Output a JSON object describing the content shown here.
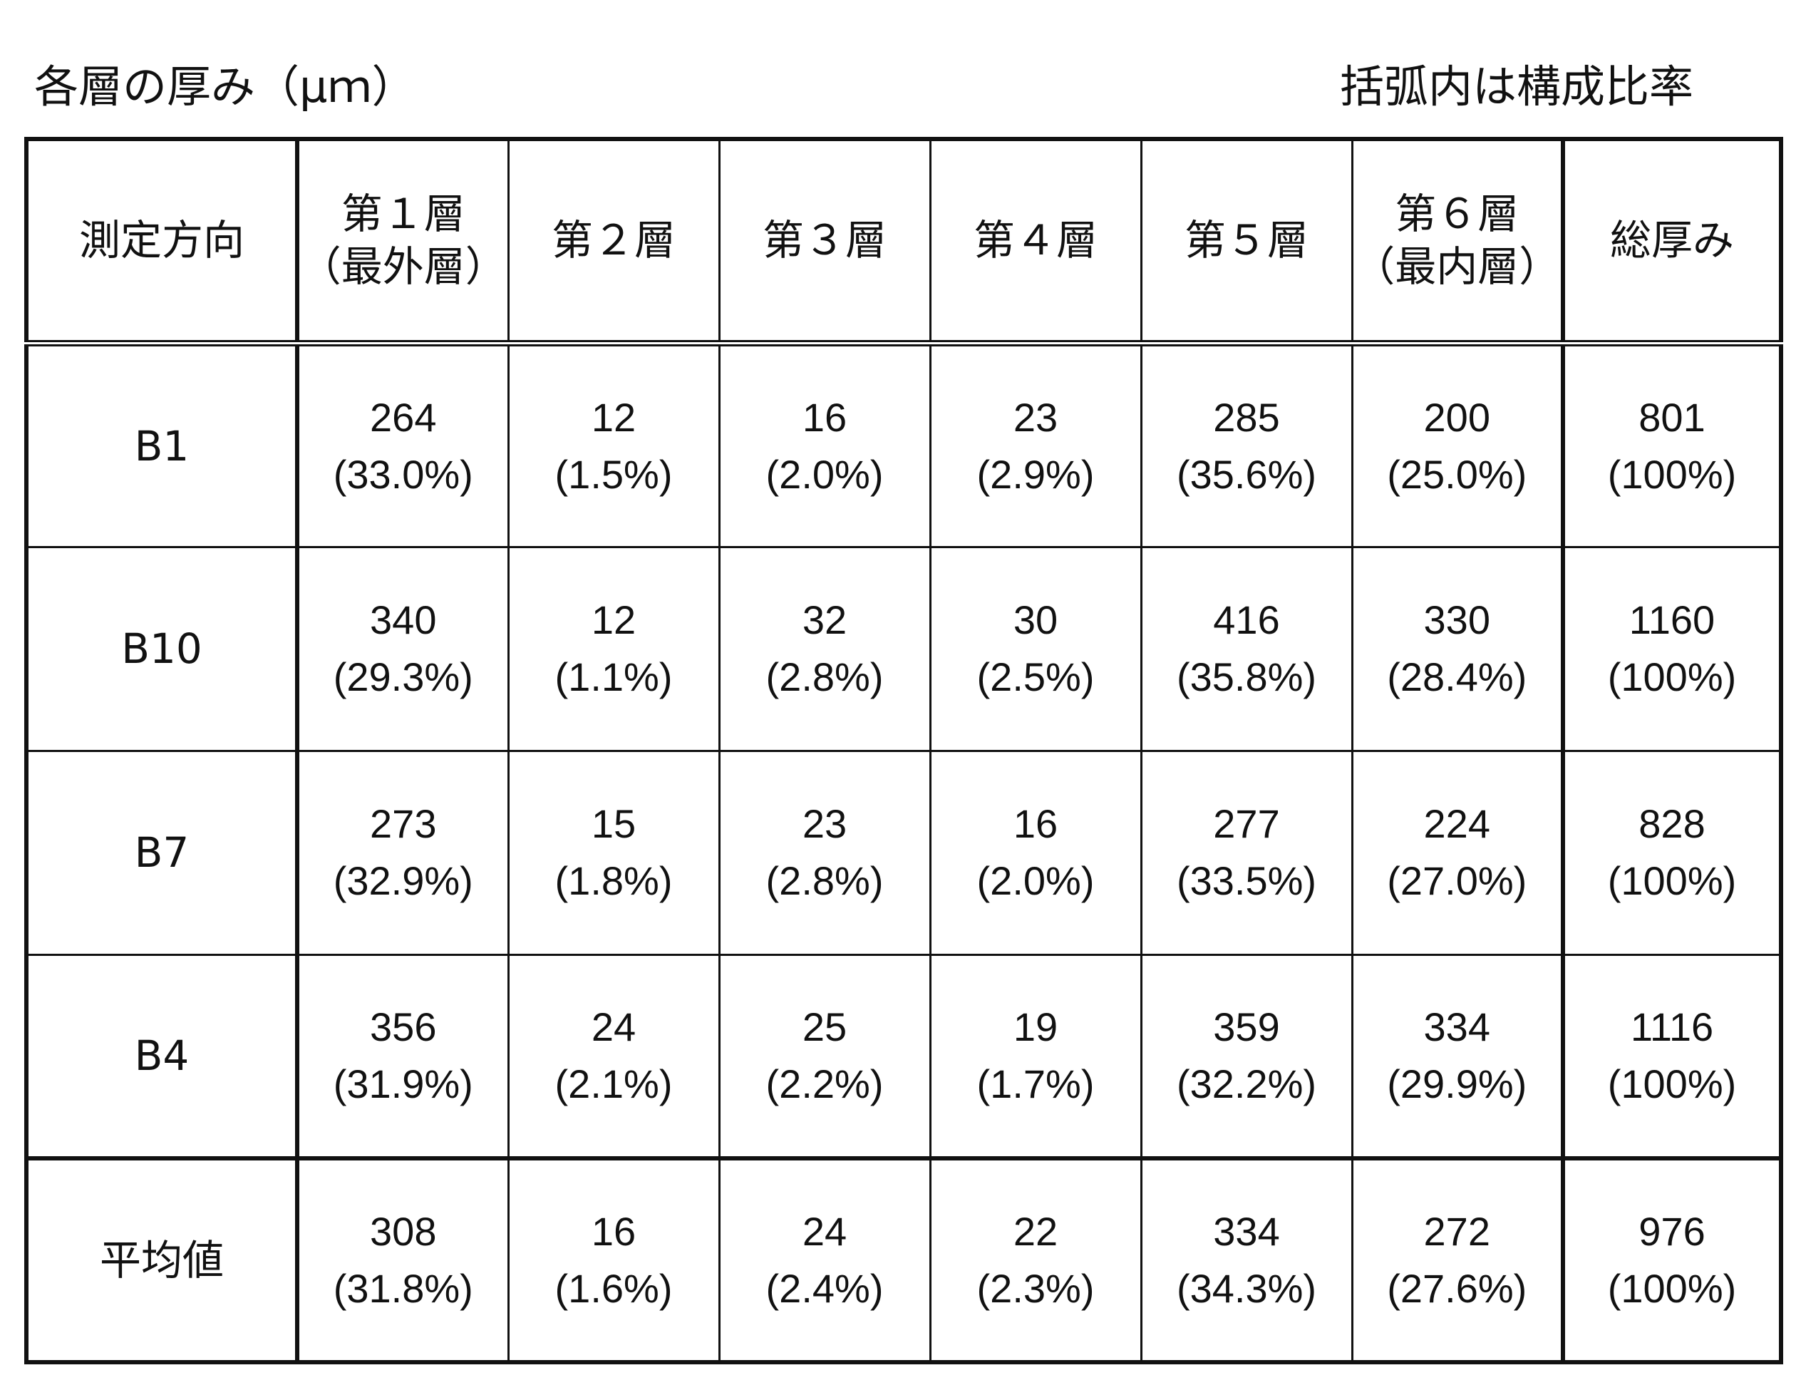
{
  "caption_left": "各層の厚み（μｍ）",
  "caption_right": "括弧内は構成比率",
  "header": {
    "direction": "測定方向",
    "layers": [
      {
        "line1": "第１層",
        "line2": "（最外層）"
      },
      {
        "line1": "第２層",
        "line2": ""
      },
      {
        "line1": "第３層",
        "line2": ""
      },
      {
        "line1": "第４層",
        "line2": ""
      },
      {
        "line1": "第５層",
        "line2": ""
      },
      {
        "line1": "第６層",
        "line2": "（最内層）"
      }
    ],
    "total": "総厚み"
  },
  "rows": [
    {
      "label": "B1",
      "cells": [
        {
          "value": "264",
          "ratio": "(33.0%)"
        },
        {
          "value": "12",
          "ratio": "(1.5%)"
        },
        {
          "value": "16",
          "ratio": "(2.0%)"
        },
        {
          "value": "23",
          "ratio": "(2.9%)"
        },
        {
          "value": "285",
          "ratio": "(35.6%)"
        },
        {
          "value": "200",
          "ratio": "(25.0%)"
        },
        {
          "value": "801",
          "ratio": "(100%)"
        }
      ]
    },
    {
      "label": "B10",
      "cells": [
        {
          "value": "340",
          "ratio": "(29.3%)"
        },
        {
          "value": "12",
          "ratio": "(1.1%)"
        },
        {
          "value": "32",
          "ratio": "(2.8%)"
        },
        {
          "value": "30",
          "ratio": "(2.5%)"
        },
        {
          "value": "416",
          "ratio": "(35.8%)"
        },
        {
          "value": "330",
          "ratio": "(28.4%)"
        },
        {
          "value": "1160",
          "ratio": "(100%)"
        }
      ]
    },
    {
      "label": "B7",
      "cells": [
        {
          "value": "273",
          "ratio": "(32.9%)"
        },
        {
          "value": "15",
          "ratio": "(1.8%)"
        },
        {
          "value": "23",
          "ratio": "(2.8%)"
        },
        {
          "value": "16",
          "ratio": "(2.0%)"
        },
        {
          "value": "277",
          "ratio": "(33.5%)"
        },
        {
          "value": "224",
          "ratio": "(27.0%)"
        },
        {
          "value": "828",
          "ratio": "(100%)"
        }
      ]
    },
    {
      "label": "B4",
      "cells": [
        {
          "value": "356",
          "ratio": "(31.9%)"
        },
        {
          "value": "24",
          "ratio": "(2.1%)"
        },
        {
          "value": "25",
          "ratio": "(2.2%)"
        },
        {
          "value": "19",
          "ratio": "(1.7%)"
        },
        {
          "value": "359",
          "ratio": "(32.2%)"
        },
        {
          "value": "334",
          "ratio": "(29.9%)"
        },
        {
          "value": "1116",
          "ratio": "(100%)"
        }
      ]
    },
    {
      "label": "平均値",
      "cells": [
        {
          "value": "308",
          "ratio": "(31.8%)"
        },
        {
          "value": "16",
          "ratio": "(1.6%)"
        },
        {
          "value": "24",
          "ratio": "(2.4%)"
        },
        {
          "value": "22",
          "ratio": "(2.3%)"
        },
        {
          "value": "334",
          "ratio": "(34.3%)"
        },
        {
          "value": "272",
          "ratio": "(27.6%)"
        },
        {
          "value": "976",
          "ratio": "(100%)"
        }
      ]
    }
  ]
}
